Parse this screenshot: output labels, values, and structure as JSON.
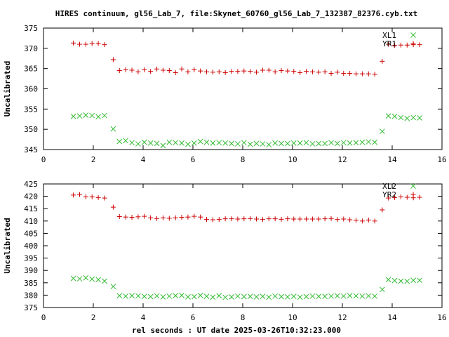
{
  "title": "HIRES continuum, gl56_Lab_7, file:Skynet_60760_gl56_Lab_7_132387_82376.cyb.txt",
  "xlabel": "rel seconds : UT date 2025-03-26T10:32:23.000",
  "colors": {
    "red": "#cc0000",
    "green": "#33bb33",
    "axis": "#000000"
  },
  "chart_data": [
    {
      "type": "scatter",
      "ylabel": "Uncalibrated",
      "xlim": [
        0,
        16
      ],
      "ylim": [
        345,
        375
      ],
      "xticks": [
        0,
        2,
        4,
        6,
        8,
        10,
        12,
        14,
        16
      ],
      "yticks": [
        345,
        350,
        355,
        360,
        365,
        370,
        375
      ],
      "x": [
        1.2,
        1.45,
        1.7,
        1.95,
        2.2,
        2.45,
        2.8,
        3.05,
        3.3,
        3.55,
        3.8,
        4.05,
        4.3,
        4.55,
        4.8,
        5.05,
        5.3,
        5.55,
        5.8,
        6.05,
        6.3,
        6.55,
        6.8,
        7.05,
        7.3,
        7.55,
        7.8,
        8.05,
        8.3,
        8.55,
        8.8,
        9.05,
        9.3,
        9.55,
        9.8,
        10.05,
        10.3,
        10.55,
        10.8,
        11.05,
        11.3,
        11.55,
        11.8,
        12.05,
        12.3,
        12.55,
        12.8,
        13.05,
        13.3,
        13.6,
        13.85,
        14.1,
        14.35,
        14.6,
        14.85,
        15.1
      ],
      "series": [
        {
          "name": "XL1",
          "marker": "x",
          "color": "#33bb33",
          "values": [
            353.2,
            353.3,
            353.5,
            353.4,
            353.1,
            353.4,
            350.1,
            347.0,
            347.2,
            346.7,
            346.4,
            346.8,
            346.6,
            346.5,
            346.0,
            346.8,
            346.7,
            346.6,
            346.3,
            346.6,
            347.0,
            346.8,
            346.6,
            346.7,
            346.6,
            346.5,
            346.4,
            346.7,
            346.3,
            346.5,
            346.4,
            346.2,
            346.6,
            346.5,
            346.5,
            346.6,
            346.6,
            346.7,
            346.4,
            346.5,
            346.5,
            346.7,
            346.5,
            346.7,
            346.6,
            346.7,
            346.8,
            346.9,
            346.8,
            349.5,
            353.3,
            353.2,
            352.9,
            352.7,
            352.9,
            352.8
          ]
        },
        {
          "name": "YR1",
          "marker": "+",
          "color": "#cc0000",
          "values": [
            371.3,
            371.0,
            371.0,
            371.2,
            371.2,
            370.9,
            367.2,
            364.5,
            364.7,
            364.6,
            364.2,
            364.7,
            364.3,
            364.9,
            364.6,
            364.5,
            364.0,
            364.9,
            364.2,
            364.7,
            364.4,
            364.2,
            364.1,
            364.2,
            364.0,
            364.3,
            364.3,
            364.4,
            364.3,
            364.1,
            364.6,
            364.6,
            364.2,
            364.5,
            364.4,
            364.3,
            364.0,
            364.3,
            364.2,
            364.1,
            364.2,
            363.8,
            364.1,
            363.8,
            363.8,
            363.7,
            363.7,
            363.7,
            363.6,
            366.8,
            371.0,
            370.7,
            370.8,
            370.8,
            370.9,
            370.9
          ]
        }
      ],
      "legend": "top-right"
    },
    {
      "type": "scatter",
      "ylabel": "Uncalibrated",
      "xlim": [
        0,
        16
      ],
      "ylim": [
        375,
        425
      ],
      "xticks": [
        0,
        2,
        4,
        6,
        8,
        10,
        12,
        14,
        16
      ],
      "yticks": [
        375,
        380,
        385,
        390,
        395,
        400,
        405,
        410,
        415,
        420,
        425
      ],
      "x": [
        1.2,
        1.45,
        1.7,
        1.95,
        2.2,
        2.45,
        2.8,
        3.05,
        3.3,
        3.55,
        3.8,
        4.05,
        4.3,
        4.55,
        4.8,
        5.05,
        5.3,
        5.55,
        5.8,
        6.05,
        6.3,
        6.55,
        6.8,
        7.05,
        7.3,
        7.55,
        7.8,
        8.05,
        8.3,
        8.55,
        8.8,
        9.05,
        9.3,
        9.55,
        9.8,
        10.05,
        10.3,
        10.55,
        10.8,
        11.05,
        11.3,
        11.55,
        11.8,
        12.05,
        12.3,
        12.55,
        12.8,
        13.05,
        13.3,
        13.6,
        13.85,
        14.1,
        14.35,
        14.6,
        14.85,
        15.1
      ],
      "series": [
        {
          "name": "XL2",
          "marker": "x",
          "color": "#33bb33",
          "values": [
            386.8,
            386.6,
            387.0,
            386.5,
            386.3,
            385.7,
            383.5,
            379.8,
            379.6,
            379.8,
            379.7,
            379.5,
            379.4,
            379.7,
            379.3,
            379.6,
            379.8,
            379.9,
            379.3,
            379.4,
            379.9,
            379.5,
            379.2,
            379.8,
            379.1,
            379.3,
            379.6,
            379.4,
            379.5,
            379.3,
            379.5,
            379.2,
            379.6,
            379.4,
            379.3,
            379.5,
            379.2,
            379.4,
            379.6,
            379.5,
            379.5,
            379.6,
            379.7,
            379.6,
            379.8,
            379.7,
            379.6,
            379.7,
            379.6,
            382.3,
            386.3,
            385.9,
            385.7,
            385.6,
            386.0,
            386.0
          ]
        },
        {
          "name": "YR2",
          "marker": "+",
          "color": "#cc0000",
          "values": [
            420.5,
            420.7,
            419.8,
            419.8,
            419.5,
            419.3,
            415.6,
            411.8,
            411.6,
            411.5,
            411.7,
            411.9,
            411.3,
            411.0,
            411.3,
            411.1,
            411.3,
            411.5,
            411.6,
            411.9,
            411.6,
            410.6,
            410.5,
            410.6,
            410.9,
            410.9,
            410.8,
            410.9,
            411.0,
            410.8,
            410.6,
            410.9,
            410.9,
            410.7,
            410.9,
            410.8,
            410.8,
            410.8,
            410.8,
            410.8,
            410.9,
            411.0,
            410.6,
            410.8,
            410.5,
            410.3,
            410.0,
            410.4,
            410.0,
            414.5,
            419.3,
            419.5,
            419.8,
            419.6,
            419.4,
            419.6
          ]
        }
      ],
      "legend": "top-right"
    }
  ]
}
